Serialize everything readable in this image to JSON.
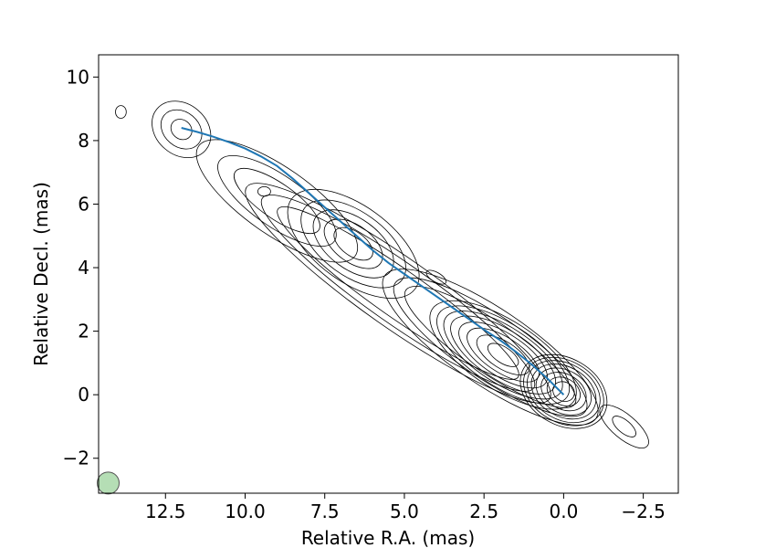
{
  "chart_data": {
    "type": "contour",
    "title": "",
    "xlabel": "Relative R.A. (mas)",
    "ylabel": "Relative Decl. (mas)",
    "xlim": [
      14.6,
      -3.6
    ],
    "ylim": [
      -3.1,
      10.7
    ],
    "x_ticks": [
      12.5,
      10.0,
      7.5,
      5.0,
      2.5,
      0.0,
      -2.5
    ],
    "x_tick_labels": [
      "12.5",
      "10.0",
      "7.5",
      "5.0",
      "2.5",
      "0.0",
      "−2.5"
    ],
    "y_ticks": [
      -2,
      0,
      2,
      4,
      6,
      8,
      10
    ],
    "y_tick_labels": [
      "−2",
      "0",
      "2",
      "4",
      "6",
      "8",
      "10"
    ],
    "grid": false,
    "ridge_line": {
      "color": "#1f77b4",
      "x": [
        0.0,
        0.5,
        1.0,
        1.5,
        2.0,
        2.5,
        3.0,
        3.5,
        4.0,
        4.5,
        5.0,
        5.5,
        6.0,
        6.5,
        7.0,
        7.5,
        8.0,
        8.5,
        9.0,
        9.5,
        10.0,
        10.5,
        11.0,
        11.5,
        12.0
      ],
      "y": [
        0.0,
        0.5,
        0.95,
        1.35,
        1.72,
        2.05,
        2.4,
        2.75,
        3.1,
        3.45,
        3.8,
        4.15,
        4.55,
        5.0,
        5.45,
        5.9,
        6.35,
        6.8,
        7.2,
        7.5,
        7.75,
        7.95,
        8.12,
        8.27,
        8.4
      ]
    },
    "beam": {
      "x": 14.3,
      "y": -2.78,
      "color": "#2ca02c"
    },
    "components": [
      {
        "x": 0.0,
        "y": 0.1,
        "pa": -30,
        "a": [
          0.35,
          0.55,
          0.75,
          0.92,
          1.08,
          1.22,
          1.34,
          1.45
        ],
        "b": [
          0.3,
          0.42,
          0.55,
          0.67,
          0.78,
          0.88,
          0.97,
          1.05
        ]
      },
      {
        "x": 1.9,
        "y": 1.25,
        "pa": -33,
        "a": [
          0.55,
          0.95,
          1.3,
          1.6,
          1.9,
          2.15,
          2.4,
          2.65
        ],
        "b": [
          0.25,
          0.42,
          0.55,
          0.67,
          0.78,
          0.88,
          0.98,
          1.08
        ]
      },
      {
        "x": 2.3,
        "y": 1.5,
        "pa": -34,
        "a": [
          3.2,
          3.6,
          4.0
        ],
        "b": [
          0.8,
          1.0,
          1.2
        ]
      },
      {
        "x": 6.6,
        "y": 4.75,
        "pa": -36,
        "a": [
          0.7,
          1.05,
          1.45,
          1.9,
          2.4
        ],
        "b": [
          0.38,
          0.58,
          0.8,
          1.0,
          1.2
        ]
      },
      {
        "x": 9.0,
        "y": 6.1,
        "pa": -35,
        "a": [
          1.6,
          2.2,
          3.0
        ],
        "b": [
          0.55,
          0.8,
          1.05
        ]
      },
      {
        "x": 12.0,
        "y": 8.35,
        "pa": -40,
        "a": [
          0.35,
          0.7,
          1.0
        ],
        "b": [
          0.3,
          0.55,
          0.8
        ]
      },
      {
        "x": 9.4,
        "y": 6.4,
        "pa": 0,
        "a": [
          0.2
        ],
        "b": [
          0.15
        ]
      },
      {
        "x": 4.0,
        "y": 3.7,
        "pa": -30,
        "a": [
          0.35
        ],
        "b": [
          0.15
        ]
      },
      {
        "x": 13.9,
        "y": 8.9,
        "pa": 0,
        "a": [
          0.17
        ],
        "b": [
          0.2
        ]
      },
      {
        "x": -1.9,
        "y": -1.0,
        "pa": -40,
        "a": [
          0.45,
          0.95
        ],
        "b": [
          0.2,
          0.38
        ]
      },
      {
        "x": 5.2,
        "y": 3.2,
        "pa": -35,
        "a": [
          4.6,
          5.2,
          5.8
        ],
        "b": [
          0.75,
          0.95,
          1.1
        ]
      }
    ]
  }
}
